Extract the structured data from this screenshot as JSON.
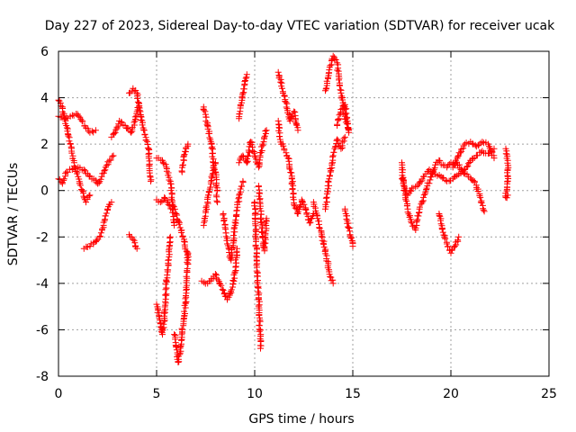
{
  "chart_data": {
    "type": "scatter",
    "title": "Day 227 of 2023, Sidereal Day-to-day VTEC variation (SDTVAR) for receiver ucak",
    "xlabel": "GPS time / hours",
    "ylabel": "SDTVAR / TECUs",
    "xlim": [
      0,
      25
    ],
    "ylim": [
      -8,
      6
    ],
    "xticks": [
      0,
      5,
      10,
      15,
      20,
      25
    ],
    "yticks": [
      -8,
      -6,
      -4,
      -2,
      0,
      2,
      4,
      6
    ],
    "grid": true,
    "legend": "none",
    "marker": "+",
    "series": [
      {
        "name": "SDTVAR",
        "color": "#ff0000",
        "tracks": [
          [
            [
              0.0,
              3.2
            ],
            [
              0.3,
              3.1
            ],
            [
              0.6,
              3.2
            ],
            [
              0.9,
              3.3
            ],
            [
              1.2,
              3.0
            ],
            [
              1.4,
              2.7
            ],
            [
              1.6,
              2.5
            ],
            [
              1.9,
              2.6
            ]
          ],
          [
            [
              0.0,
              3.9
            ],
            [
              0.2,
              3.6
            ],
            [
              0.4,
              2.8
            ],
            [
              0.6,
              2.0
            ],
            [
              0.8,
              1.2
            ],
            [
              1.0,
              0.6
            ],
            [
              1.2,
              0.0
            ],
            [
              1.4,
              -0.5
            ],
            [
              1.6,
              -0.2
            ]
          ],
          [
            [
              0.0,
              0.5
            ],
            [
              0.2,
              0.3
            ],
            [
              0.4,
              0.8
            ],
            [
              0.7,
              0.9
            ],
            [
              1.0,
              1.0
            ],
            [
              1.3,
              0.9
            ],
            [
              1.6,
              0.6
            ],
            [
              1.8,
              0.5
            ],
            [
              2.0,
              0.3
            ],
            [
              2.2,
              0.6
            ],
            [
              2.4,
              1.0
            ],
            [
              2.6,
              1.3
            ],
            [
              2.8,
              1.5
            ]
          ],
          [
            [
              1.3,
              -2.5
            ],
            [
              1.6,
              -2.4
            ],
            [
              1.9,
              -2.2
            ],
            [
              2.1,
              -2.0
            ],
            [
              2.3,
              -1.5
            ],
            [
              2.5,
              -0.8
            ],
            [
              2.7,
              -0.5
            ]
          ],
          [
            [
              2.7,
              2.3
            ],
            [
              2.9,
              2.5
            ],
            [
              3.1,
              3.0
            ],
            [
              3.4,
              2.8
            ],
            [
              3.7,
              2.5
            ],
            [
              3.9,
              3.0
            ],
            [
              4.0,
              3.4
            ],
            [
              4.1,
              3.6
            ]
          ],
          [
            [
              3.6,
              4.2
            ],
            [
              3.8,
              4.4
            ],
            [
              4.0,
              4.2
            ],
            [
              4.2,
              3.2
            ],
            [
              4.4,
              2.4
            ],
            [
              4.6,
              1.8
            ],
            [
              4.7,
              0.4
            ]
          ],
          [
            [
              3.6,
              -1.9
            ],
            [
              3.8,
              -2.1
            ],
            [
              4.0,
              -2.5
            ]
          ],
          [
            [
              5.0,
              1.4
            ],
            [
              5.3,
              1.3
            ],
            [
              5.5,
              1.0
            ],
            [
              5.7,
              0.4
            ],
            [
              5.8,
              -0.5
            ],
            [
              6.0,
              -1.0
            ],
            [
              6.2,
              -1.6
            ],
            [
              6.4,
              -2.1
            ],
            [
              6.6,
              -3.0
            ]
          ],
          [
            [
              5.0,
              -0.4
            ],
            [
              5.2,
              -0.5
            ],
            [
              5.4,
              -0.3
            ],
            [
              5.6,
              -0.6
            ],
            [
              5.8,
              -0.8
            ],
            [
              5.9,
              -1.5
            ]
          ],
          [
            [
              5.0,
              -4.9
            ],
            [
              5.2,
              -5.7
            ],
            [
              5.3,
              -6.2
            ],
            [
              5.4,
              -5.5
            ],
            [
              5.5,
              -3.9
            ],
            [
              5.6,
              -3.2
            ],
            [
              5.7,
              -2.0
            ]
          ],
          [
            [
              5.9,
              -6.2
            ],
            [
              6.0,
              -6.7
            ],
            [
              6.1,
              -7.4
            ],
            [
              6.2,
              -7.0
            ],
            [
              6.3,
              -6.0
            ],
            [
              6.4,
              -5.5
            ],
            [
              6.5,
              -4.6
            ],
            [
              6.6,
              -2.7
            ]
          ],
          [
            [
              6.3,
              0.8
            ],
            [
              6.4,
              1.5
            ],
            [
              6.5,
              1.8
            ],
            [
              6.6,
              2.0
            ]
          ],
          [
            [
              7.4,
              3.6
            ],
            [
              7.6,
              2.8
            ],
            [
              7.8,
              2.0
            ],
            [
              7.9,
              1.2
            ],
            [
              8.0,
              0.8
            ],
            [
              8.1,
              -0.5
            ]
          ],
          [
            [
              7.3,
              -3.9
            ],
            [
              7.6,
              -4.0
            ],
            [
              7.8,
              -3.8
            ],
            [
              8.0,
              -3.6
            ],
            [
              8.2,
              -4.0
            ],
            [
              8.4,
              -4.3
            ],
            [
              8.6,
              -4.7
            ],
            [
              8.8,
              -4.4
            ],
            [
              9.0,
              -3.5
            ],
            [
              9.1,
              -2.5
            ]
          ],
          [
            [
              7.4,
              -1.5
            ],
            [
              7.6,
              -0.5
            ],
            [
              7.8,
              0.6
            ],
            [
              8.0,
              1.2
            ]
          ],
          [
            [
              8.4,
              -1.0
            ],
            [
              8.6,
              -2.3
            ],
            [
              8.8,
              -3.0
            ],
            [
              9.0,
              -1.5
            ],
            [
              9.2,
              -0.3
            ],
            [
              9.4,
              0.4
            ]
          ],
          [
            [
              9.2,
              1.2
            ],
            [
              9.4,
              1.5
            ],
            [
              9.6,
              1.2
            ],
            [
              9.8,
              2.1
            ],
            [
              10.0,
              1.5
            ],
            [
              10.2,
              1.0
            ],
            [
              10.4,
              2.0
            ],
            [
              10.6,
              2.6
            ]
          ],
          [
            [
              9.2,
              3.1
            ],
            [
              9.4,
              4.2
            ],
            [
              9.6,
              5.0
            ]
          ],
          [
            [
              10.0,
              -0.5
            ],
            [
              10.1,
              -3.0
            ],
            [
              10.2,
              -4.5
            ],
            [
              10.3,
              -6.8
            ]
          ],
          [
            [
              10.2,
              0.2
            ],
            [
              10.4,
              -2.0
            ],
            [
              10.5,
              -2.6
            ],
            [
              10.6,
              -1.2
            ]
          ],
          [
            [
              11.2,
              5.1
            ],
            [
              11.4,
              4.4
            ],
            [
              11.6,
              3.8
            ],
            [
              11.8,
              3.0
            ],
            [
              12.0,
              3.4
            ],
            [
              12.2,
              2.6
            ]
          ],
          [
            [
              11.2,
              3.0
            ],
            [
              11.3,
              2.2
            ],
            [
              11.5,
              1.8
            ],
            [
              11.7,
              1.4
            ],
            [
              11.9,
              0.5
            ],
            [
              12.0,
              -0.6
            ],
            [
              12.2,
              -1.0
            ],
            [
              12.4,
              -0.4
            ],
            [
              12.6,
              -0.8
            ],
            [
              12.8,
              -1.4
            ],
            [
              13.0,
              -1.0
            ]
          ],
          [
            [
              13.0,
              -0.5
            ],
            [
              13.2,
              -1.2
            ],
            [
              13.4,
              -1.8
            ],
            [
              13.6,
              -2.6
            ],
            [
              13.8,
              -3.5
            ],
            [
              14.0,
              -4.0
            ]
          ],
          [
            [
              13.6,
              -0.8
            ],
            [
              13.8,
              0.5
            ],
            [
              14.0,
              1.5
            ],
            [
              14.2,
              2.2
            ],
            [
              14.4,
              1.8
            ],
            [
              14.6,
              2.3
            ]
          ],
          [
            [
              13.6,
              4.3
            ],
            [
              13.8,
              5.2
            ],
            [
              14.0,
              5.8
            ],
            [
              14.2,
              5.5
            ],
            [
              14.4,
              4.2
            ],
            [
              14.6,
              3.2
            ],
            [
              14.8,
              2.5
            ]
          ],
          [
            [
              14.2,
              2.8
            ],
            [
              14.4,
              3.5
            ],
            [
              14.6,
              3.7
            ],
            [
              14.8,
              2.6
            ]
          ],
          [
            [
              14.6,
              -0.8
            ],
            [
              14.8,
              -1.6
            ],
            [
              15.0,
              -2.4
            ]
          ],
          [
            [
              17.5,
              1.2
            ],
            [
              17.6,
              0.2
            ],
            [
              17.8,
              -0.8
            ],
            [
              18.0,
              -1.4
            ],
            [
              18.2,
              -1.7
            ],
            [
              18.4,
              -0.8
            ],
            [
              18.6,
              -0.3
            ],
            [
              18.8,
              0.2
            ],
            [
              19.0,
              0.6
            ],
            [
              19.2,
              1.1
            ],
            [
              19.4,
              1.3
            ],
            [
              19.6,
              1.1
            ],
            [
              19.8,
              1.0
            ],
            [
              20.0,
              1.2
            ],
            [
              20.3,
              1.2
            ],
            [
              20.6,
              0.8
            ],
            [
              20.9,
              0.6
            ],
            [
              21.2,
              0.4
            ],
            [
              21.5,
              -0.3
            ],
            [
              21.7,
              -0.9
            ]
          ],
          [
            [
              17.5,
              0.5
            ],
            [
              17.8,
              -0.2
            ],
            [
              18.0,
              0.1
            ],
            [
              18.3,
              0.2
            ],
            [
              18.6,
              0.6
            ],
            [
              18.9,
              0.9
            ],
            [
              19.2,
              0.7
            ],
            [
              19.5,
              0.6
            ],
            [
              19.8,
              0.4
            ],
            [
              20.1,
              0.5
            ],
            [
              20.4,
              0.7
            ],
            [
              20.7,
              0.9
            ],
            [
              21.0,
              1.3
            ],
            [
              21.3,
              1.5
            ],
            [
              21.6,
              1.7
            ],
            [
              21.9,
              1.6
            ],
            [
              22.2,
              1.8
            ]
          ],
          [
            [
              19.4,
              -1.0
            ],
            [
              19.6,
              -1.8
            ],
            [
              19.8,
              -2.3
            ],
            [
              20.0,
              -2.7
            ],
            [
              20.2,
              -2.4
            ],
            [
              20.4,
              -2.0
            ]
          ],
          [
            [
              20.1,
              1.0
            ],
            [
              20.4,
              1.5
            ],
            [
              20.7,
              2.0
            ],
            [
              21.0,
              2.1
            ],
            [
              21.3,
              1.9
            ],
            [
              21.6,
              2.1
            ],
            [
              21.9,
              2.0
            ],
            [
              22.2,
              1.4
            ]
          ],
          [
            [
              22.8,
              1.8
            ],
            [
              22.9,
              1.3
            ],
            [
              22.9,
              0.6
            ],
            [
              22.8,
              -0.3
            ],
            [
              22.9,
              -0.2
            ]
          ]
        ]
      }
    ]
  }
}
